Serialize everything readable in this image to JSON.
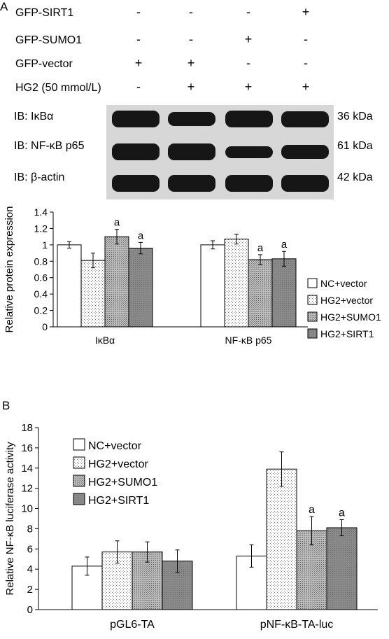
{
  "panel_a": {
    "letter": "A",
    "treatments": [
      {
        "label": "GFP-SIRT1",
        "signs": [
          "-",
          "-",
          "-",
          "+"
        ]
      },
      {
        "label": "GFP-SUMO1",
        "signs": [
          "-",
          "-",
          "+",
          "-"
        ]
      },
      {
        "label": "GFP-vector",
        "signs": [
          "+",
          "+",
          "-",
          "-"
        ]
      },
      {
        "label": "HG2 (50 mmol/L)",
        "signs": [
          "-",
          "+",
          "+",
          "+"
        ]
      }
    ],
    "blots": [
      {
        "label": "IB: IκBα",
        "kda": "36 kDa",
        "intensity": [
          1.0,
          0.85,
          1.0,
          0.95
        ]
      },
      {
        "label": "IB: NF-κB p65",
        "kda": "61 kDa",
        "intensity": [
          1.0,
          1.0,
          0.7,
          0.85
        ]
      },
      {
        "label": "IB: β-actin",
        "kda": "42 kDa",
        "intensity": [
          1.0,
          1.0,
          1.0,
          1.0
        ]
      }
    ]
  },
  "panel_b": {
    "letter": "B"
  },
  "chart_data": [
    {
      "type": "bar",
      "ylabel": "Relative protein expression",
      "ylim": [
        0,
        1.4
      ],
      "yticks": [
        "0",
        "0.2",
        "0.4",
        "0.6",
        "0.8",
        "1",
        "1.2",
        "1.4"
      ],
      "categories": [
        "IκBα",
        "NF-κB p65"
      ],
      "series": [
        {
          "name": "NC+vector",
          "values": [
            1.0,
            1.0
          ],
          "errors": [
            0.04,
            0.05
          ]
        },
        {
          "name": "HG2+vector",
          "values": [
            0.81,
            1.07
          ],
          "errors": [
            0.09,
            0.06
          ]
        },
        {
          "name": "HG2+SUMO1",
          "values": [
            1.1,
            0.82
          ],
          "errors": [
            0.09,
            0.06
          ]
        },
        {
          "name": "HG2+SIRT1",
          "values": [
            0.96,
            0.83
          ],
          "errors": [
            0.07,
            0.09
          ]
        }
      ],
      "significance": [
        [
          "",
          "",
          "a",
          "a"
        ],
        [
          "",
          "",
          "a",
          "a"
        ]
      ],
      "legend_position": "right"
    },
    {
      "type": "bar",
      "ylabel": "Relative NF-κB luciferase activity",
      "ylim": [
        0,
        18
      ],
      "yticks": [
        "0",
        "2",
        "4",
        "6",
        "8",
        "10",
        "12",
        "14",
        "16",
        "18"
      ],
      "categories": [
        "pGL6-TA",
        "pNF-κB-TA-luc"
      ],
      "series": [
        {
          "name": "NC+vector",
          "values": [
            4.3,
            5.3
          ],
          "errors": [
            0.9,
            1.1
          ]
        },
        {
          "name": "HG2+vector",
          "values": [
            5.7,
            13.9
          ],
          "errors": [
            1.1,
            1.7
          ]
        },
        {
          "name": "HG2+SUMO1",
          "values": [
            5.7,
            7.8
          ],
          "errors": [
            1.0,
            1.4
          ]
        },
        {
          "name": "HG2+SIRT1",
          "values": [
            4.8,
            8.1
          ],
          "errors": [
            1.1,
            0.8
          ]
        }
      ],
      "significance": [
        [
          "",
          "",
          "",
          ""
        ],
        [
          "",
          "",
          "a",
          "a"
        ]
      ],
      "legend_position": "top-left"
    }
  ]
}
